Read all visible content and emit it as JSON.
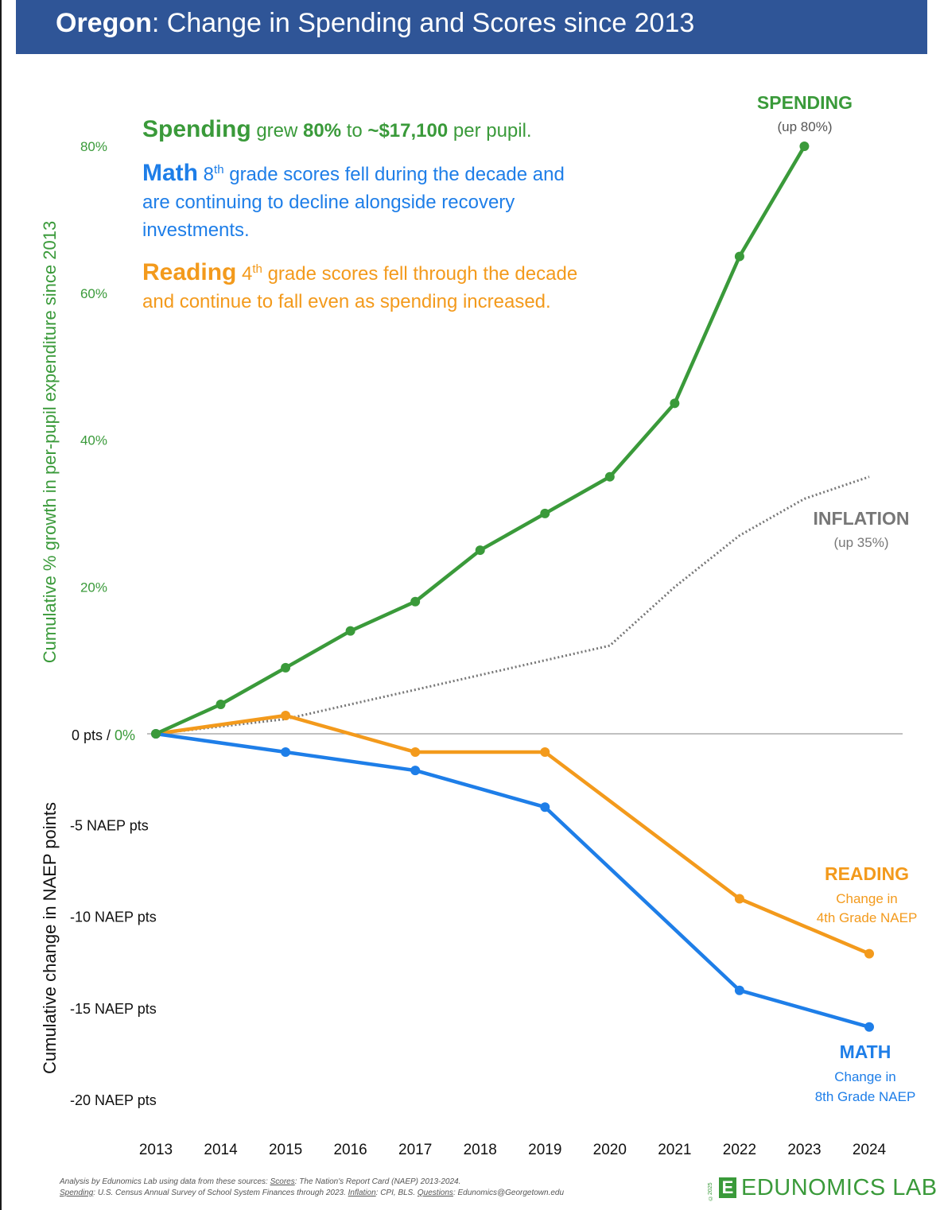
{
  "header": {
    "state": "Oregon",
    "title_rest": ": Change in Spending and Scores since 2013"
  },
  "callouts": {
    "spending": {
      "label": "Spending",
      "t1": " grew ",
      "pct": "80%",
      "t2": " to ",
      "amount": "~$17,100",
      "t3": " per pupil."
    },
    "math": {
      "label": "Math",
      "grade_num": "8",
      "grade_sup": "th",
      "text": " grade scores fell during the decade and are continuing to decline alongside recovery investments."
    },
    "reading": {
      "label": "Reading",
      "grade_num": "4",
      "grade_sup": "th",
      "text": " grade scores fell through the decade and continue to fall even as spending increased."
    }
  },
  "chart_data": {
    "type": "line",
    "x": [
      2013,
      2014,
      2015,
      2016,
      2017,
      2018,
      2019,
      2020,
      2021,
      2022,
      2023,
      2024
    ],
    "xlim": [
      2013,
      2024
    ],
    "upper_axis": {
      "label": "Cumulative % growth in per-pupil expenditure since 2013",
      "range": [
        0,
        80
      ],
      "ticks": [
        {
          "v": 80,
          "t": "80%"
        },
        {
          "v": 60,
          "t": "60%"
        },
        {
          "v": 40,
          "t": "40%"
        },
        {
          "v": 20,
          "t": "20%"
        }
      ]
    },
    "lower_axis": {
      "label": "Cumulative change in NAEP points",
      "range": [
        -20,
        0
      ],
      "ticks": [
        {
          "v": -5,
          "t": "-5 NAEP pts"
        },
        {
          "v": -10,
          "t": "-10 NAEP pts"
        },
        {
          "v": -15,
          "t": "-15 NAEP pts"
        },
        {
          "v": -20,
          "t": "-20 NAEP pts"
        }
      ]
    },
    "zero_label_pts": "0 pts",
    "zero_label_sep": " / ",
    "zero_label_pct": "0%",
    "series": [
      {
        "name": "SPENDING",
        "axis": "upper",
        "color": "#3a9a3a",
        "style": "solid-markers",
        "x": [
          2013,
          2014,
          2015,
          2016,
          2017,
          2018,
          2019,
          2020,
          2021,
          2022,
          2023
        ],
        "y": [
          0,
          4,
          9,
          14,
          18,
          25,
          30,
          35,
          45,
          65,
          80
        ],
        "legend_title": "SPENDING",
        "legend_sub": [
          "(up 80%)"
        ]
      },
      {
        "name": "INFLATION",
        "axis": "upper",
        "color": "#777777",
        "style": "dotted",
        "x": [
          2013,
          2014,
          2015,
          2016,
          2017,
          2018,
          2019,
          2020,
          2021,
          2022,
          2023,
          2024
        ],
        "y": [
          0,
          1,
          2,
          4,
          6,
          8,
          10,
          12,
          20,
          27,
          32,
          35
        ],
        "legend_title": "INFLATION",
        "legend_sub": [
          "(up 35%)"
        ]
      },
      {
        "name": "READING",
        "axis": "lower",
        "color": "#f39a1c",
        "style": "solid-markers",
        "x": [
          2013,
          2015,
          2017,
          2019,
          2022,
          2024
        ],
        "y": [
          0,
          1,
          -1,
          -1,
          -9,
          -12
        ],
        "legend_title": "READING",
        "legend_sub": [
          "Change in",
          "4th Grade NAEP"
        ]
      },
      {
        "name": "MATH",
        "axis": "lower",
        "color": "#1e7ee8",
        "style": "solid-markers",
        "x": [
          2013,
          2015,
          2017,
          2019,
          2022,
          2024
        ],
        "y": [
          0,
          -1,
          -2,
          -4,
          -14,
          -16
        ],
        "legend_title": "MATH",
        "legend_sub": [
          "Change in",
          "8th Grade NAEP"
        ]
      }
    ]
  },
  "footer": {
    "line1_pre": "Analysis by Edunomics Lab using data from these sources: ",
    "scores_label": "Scores",
    "scores_text": ": The Nation's Report Card (NAEP) 2013-2024.",
    "spending_label": "Spending",
    "spending_text": ": U.S. Census Annual Survey of School System Finances through 2023. ",
    "inflation_label": "Inflation",
    "inflation_text": ": CPI, BLS. ",
    "questions_label": "Questions",
    "questions_text": ": Edunomics@Georgetown.edu"
  },
  "logo": {
    "copyright": "©2025",
    "mark": "E",
    "text": "EDUNOMICS LAB"
  }
}
